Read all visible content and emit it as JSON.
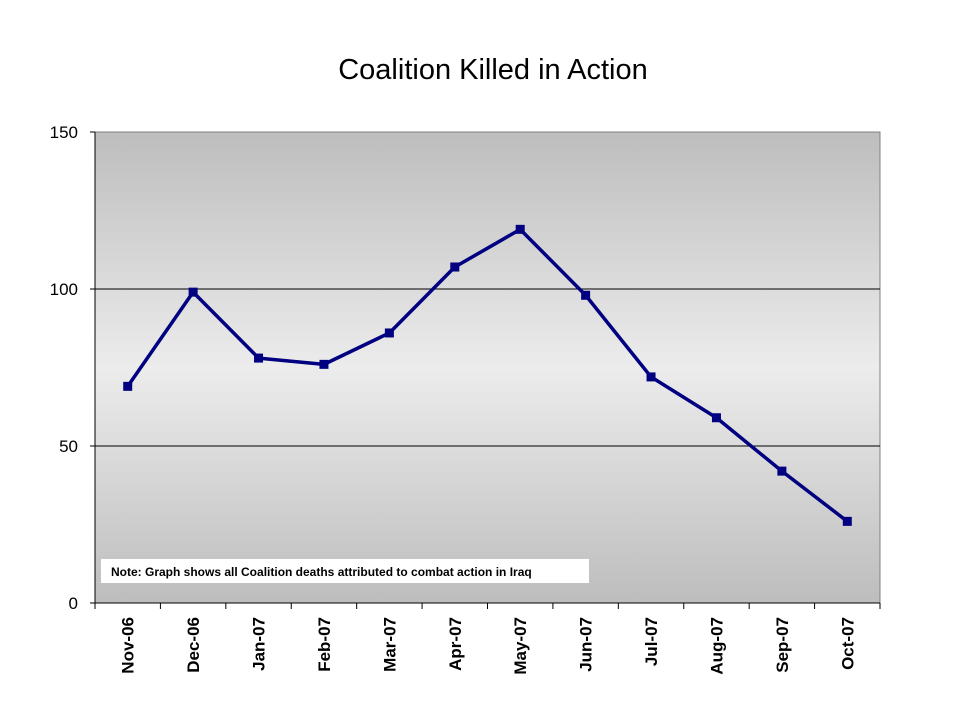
{
  "chart_data": {
    "type": "line",
    "title": "Coalition Killed in Action",
    "xlabel": "",
    "ylabel": "",
    "categories": [
      "Nov-06",
      "Dec-06",
      "Jan-07",
      "Feb-07",
      "Mar-07",
      "Apr-07",
      "May-07",
      "Jun-07",
      "Jul-07",
      "Aug-07",
      "Sep-07",
      "Oct-07"
    ],
    "series": [
      {
        "values": [
          69,
          99,
          78,
          76,
          86,
          107,
          119,
          98,
          72,
          59,
          42,
          26
        ]
      }
    ],
    "ylim": [
      0,
      150
    ],
    "yticks": [
      0,
      50,
      100,
      150
    ],
    "grid": true,
    "legend": "none",
    "note": "Note: Graph shows all Coalition deaths attributed to combat action in Iraq",
    "colors": {
      "line": "#000080",
      "marker": "#000080",
      "plot_gradient_edge": "#bdbdbd",
      "plot_gradient_center": "#ececec",
      "gridline": "#000000"
    }
  }
}
